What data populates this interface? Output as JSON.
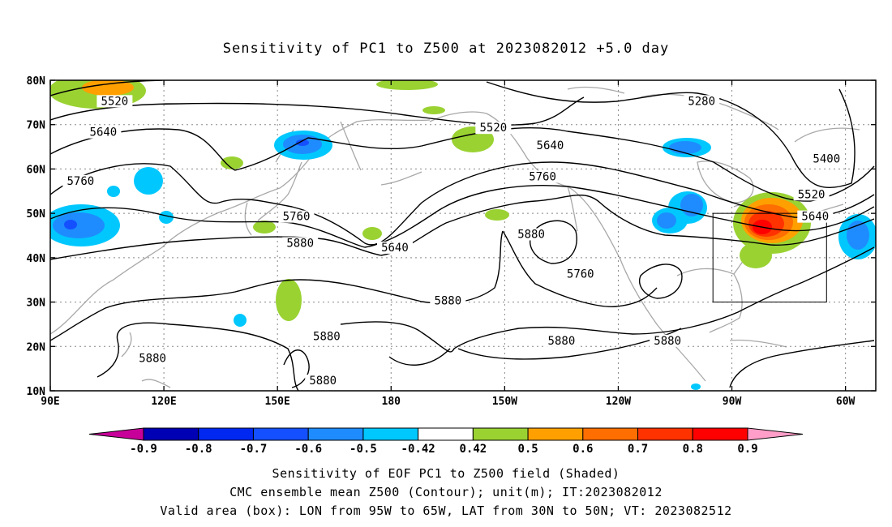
{
  "title": "Sensitivity of PC1 to Z500 at 2023082012 +5.0 day",
  "map": {
    "lat_labels": [
      "80N",
      "70N",
      "60N",
      "50N",
      "40N",
      "30N",
      "20N",
      "10N"
    ],
    "lon_labels": [
      "90E",
      "120E",
      "150E",
      "180",
      "150W",
      "120W",
      "90W",
      "60W"
    ],
    "contour_labels": [
      {
        "text": "5520",
        "lon": 107,
        "lat": 75
      },
      {
        "text": "5280",
        "lon": 262,
        "lat": 75
      },
      {
        "text": "5640",
        "lon": 104,
        "lat": 68
      },
      {
        "text": "5520",
        "lon": 207,
        "lat": 69
      },
      {
        "text": "5640",
        "lon": 222,
        "lat": 65
      },
      {
        "text": "5400",
        "lon": 295,
        "lat": 62
      },
      {
        "text": "5760",
        "lon": 98,
        "lat": 57
      },
      {
        "text": "5760",
        "lon": 220,
        "lat": 58
      },
      {
        "text": "5520",
        "lon": 291,
        "lat": 54
      },
      {
        "text": "5640",
        "lon": 292,
        "lat": 49
      },
      {
        "text": "5760",
        "lon": 155,
        "lat": 49
      },
      {
        "text": "5880",
        "lon": 156,
        "lat": 43
      },
      {
        "text": "5640",
        "lon": 181,
        "lat": 42
      },
      {
        "text": "5880",
        "lon": 217,
        "lat": 45
      },
      {
        "text": "5760",
        "lon": 230,
        "lat": 36
      },
      {
        "text": "5880",
        "lon": 195,
        "lat": 30
      },
      {
        "text": "5880",
        "lon": 163,
        "lat": 22
      },
      {
        "text": "5880",
        "lon": 225,
        "lat": 21
      },
      {
        "text": "5880",
        "lon": 253,
        "lat": 21
      },
      {
        "text": "5880",
        "lon": 117,
        "lat": 17
      },
      {
        "text": "5880",
        "lon": 162,
        "lat": 12
      }
    ],
    "valid_box": {
      "lon_min": 265,
      "lon_max": 295,
      "lat_min": 30,
      "lat_max": 50
    }
  },
  "colorbar": {
    "labels": [
      "-0.9",
      "-0.8",
      "-0.7",
      "-0.6",
      "-0.5",
      "-0.42",
      "0.42",
      "0.5",
      "0.6",
      "0.7",
      "0.8",
      "0.9"
    ],
    "colors": [
      "#0000b4",
      "#0028f0",
      "#1450ff",
      "#1e8cff",
      "#00c8ff",
      "#ffffff",
      "#9ad232",
      "#ffa000",
      "#ff6e00",
      "#ff3200",
      "#ff0000"
    ],
    "low_color": "#c8009a",
    "high_color": "#ff9ec8"
  },
  "caption": {
    "line1": "Sensitivity of EOF PC1 to Z500 field (Shaded)",
    "line2": "CMC ensemble mean Z500 (Contour); unit(m); IT:2023082012",
    "line3": "Valid area (box): LON from 95W to 65W, LAT from 30N to 50N; VT: 2023082512"
  }
}
